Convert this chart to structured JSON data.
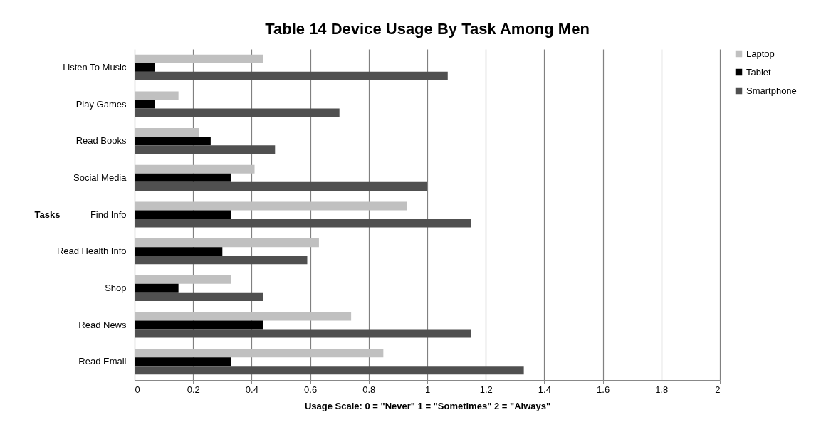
{
  "chart_data": {
    "type": "bar",
    "orientation": "horizontal",
    "title": "Table 14 Device Usage By Task Among Men",
    "xlabel": "Usage Scale: 0 = \"Never\"  1 = \"Sometimes\"  2 = \"Always\"",
    "ylabel": "Tasks",
    "categories": [
      "Listen To Music",
      "Play Games",
      "Read Books",
      "Social Media",
      "Find Info",
      "Read Health Info",
      "Shop",
      "Read News",
      "Read Email"
    ],
    "series": [
      {
        "name": "Laptop",
        "color": "#c0c0c0",
        "values": [
          0.44,
          0.15,
          0.22,
          0.41,
          0.93,
          0.63,
          0.33,
          0.74,
          0.85
        ]
      },
      {
        "name": "Tablet",
        "color": "#000000",
        "values": [
          0.07,
          0.07,
          0.26,
          0.33,
          0.33,
          0.3,
          0.15,
          0.44,
          0.33
        ]
      },
      {
        "name": "Smartphone",
        "color": "#505050",
        "values": [
          1.07,
          0.7,
          0.48,
          1.0,
          1.15,
          0.59,
          0.44,
          1.15,
          1.33
        ]
      }
    ],
    "xlim": [
      0,
      2
    ],
    "xticks": [
      0,
      0.2,
      0.4,
      0.6,
      0.8,
      1,
      1.2,
      1.4,
      1.6,
      1.8,
      2
    ],
    "grid": "x",
    "legend": "right"
  }
}
